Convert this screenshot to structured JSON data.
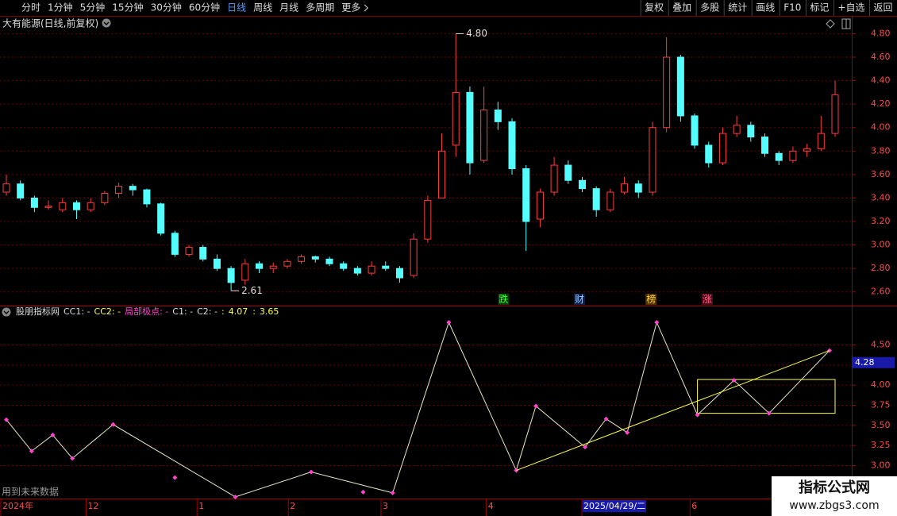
{
  "toolbar": {
    "periods": [
      "分时",
      "1分钟",
      "5分钟",
      "15分钟",
      "30分钟",
      "60分钟",
      "日线",
      "周线",
      "月线",
      "多周期",
      "更多"
    ],
    "active": 6,
    "tools": [
      "复权",
      "叠加",
      "多股",
      "统计",
      "画线",
      "F10",
      "标记",
      "+自选",
      "返回"
    ]
  },
  "chart_data": [
    {
      "type": "candlestick",
      "title": "大有能源(日线,前复权)",
      "up_color": "#ff3c3c",
      "down_color": "#54ffff",
      "ylim": [
        2.49,
        4.83
      ],
      "yticks": [
        {
          "value": 2.6,
          "label": "2.60"
        },
        {
          "value": 2.8,
          "label": "2.80"
        },
        {
          "value": 3,
          "label": "3.00"
        },
        {
          "value": 3.2,
          "label": "3.20"
        },
        {
          "value": 3.4,
          "label": "3.40"
        },
        {
          "value": 3.6,
          "label": "3.60"
        },
        {
          "value": 3.8,
          "label": "3.80"
        },
        {
          "value": 4,
          "label": "4.00"
        },
        {
          "value": 4.2,
          "label": "4.20"
        },
        {
          "value": 4.4,
          "label": "4.40"
        },
        {
          "value": 4.6,
          "label": "4.60"
        },
        {
          "value": 4.8,
          "label": "4.80"
        }
      ],
      "grid": true,
      "open": [
        3.45,
        3.52,
        3.4,
        3.32,
        3.3,
        3.36,
        3.3,
        3.36,
        3.44,
        3.5,
        3.47,
        3.35,
        3.1,
        2.92,
        2.98,
        2.88,
        2.8,
        2.7,
        2.84,
        2.8,
        2.82,
        2.86,
        2.9,
        2.88,
        2.84,
        2.8,
        2.76,
        2.82,
        2.8,
        2.74,
        3.05,
        3.4,
        3.85,
        4.3,
        3.72,
        4.15,
        4.05,
        3.65,
        3.22,
        3.45,
        3.68,
        3.55,
        3.48,
        3.3,
        3.45,
        3.52,
        3.45,
        4.0,
        4.6,
        4.1,
        3.85,
        3.7,
        3.95,
        4.02,
        3.92,
        3.78,
        3.72,
        3.8,
        3.82,
        3.95
      ],
      "high": [
        3.6,
        3.55,
        3.42,
        3.38,
        3.4,
        3.38,
        3.4,
        3.46,
        3.53,
        3.52,
        3.48,
        3.36,
        3.12,
        3.0,
        3.0,
        2.92,
        2.82,
        2.88,
        2.86,
        2.85,
        2.88,
        2.92,
        2.91,
        2.9,
        2.86,
        2.82,
        2.86,
        2.86,
        2.82,
        3.1,
        3.42,
        3.95,
        4.8,
        4.35,
        4.35,
        4.22,
        4.08,
        3.68,
        3.48,
        3.75,
        3.72,
        3.58,
        3.5,
        3.48,
        3.58,
        3.55,
        4.05,
        4.77,
        4.62,
        4.12,
        3.88,
        4.0,
        4.1,
        4.05,
        3.95,
        3.8,
        3.84,
        3.86,
        4.1,
        4.4
      ],
      "low": [
        3.42,
        3.38,
        3.28,
        3.3,
        3.28,
        3.22,
        3.28,
        3.34,
        3.4,
        3.42,
        3.32,
        3.08,
        2.9,
        2.9,
        2.86,
        2.78,
        2.61,
        2.66,
        2.76,
        2.76,
        2.8,
        2.84,
        2.85,
        2.82,
        2.78,
        2.74,
        2.74,
        2.78,
        2.68,
        2.72,
        3.02,
        3.4,
        3.75,
        3.6,
        3.7,
        3.98,
        3.6,
        2.95,
        3.15,
        3.42,
        3.52,
        3.45,
        3.24,
        3.28,
        3.43,
        3.4,
        3.42,
        3.96,
        4.05,
        3.82,
        3.66,
        3.68,
        3.92,
        3.88,
        3.75,
        3.68,
        3.7,
        3.75,
        3.8,
        3.92
      ],
      "close": [
        3.52,
        3.4,
        3.32,
        3.33,
        3.36,
        3.3,
        3.36,
        3.44,
        3.5,
        3.47,
        3.35,
        3.1,
        2.92,
        2.98,
        2.88,
        2.8,
        2.68,
        2.84,
        2.8,
        2.82,
        2.86,
        2.9,
        2.88,
        2.84,
        2.8,
        2.76,
        2.82,
        2.8,
        2.72,
        3.05,
        3.38,
        3.8,
        4.3,
        3.7,
        4.15,
        4.05,
        3.65,
        3.2,
        3.45,
        3.68,
        3.55,
        3.48,
        3.3,
        3.45,
        3.52,
        3.45,
        4.0,
        4.6,
        4.1,
        3.85,
        3.7,
        3.95,
        4.02,
        3.92,
        3.78,
        3.72,
        3.8,
        3.82,
        3.95,
        4.28
      ],
      "annotations": [
        {
          "x": 32,
          "value": 4.8,
          "label": "4.80"
        },
        {
          "x": 16,
          "value": 2.61
        }
      ],
      "markers": [
        {
          "x": 35.4,
          "label": "跌",
          "color": "#33ff33",
          "bg": "#0b3d0b"
        },
        {
          "x": 40.8,
          "label": "财",
          "color": "#99ccff",
          "bg": "#0b1f4d"
        },
        {
          "x": 45.9,
          "label": "榜",
          "color": "#ffcc44",
          "bg": "#4d3300"
        },
        {
          "x": 49.9,
          "label": "涨",
          "color": "#ff6688",
          "bg": "#4d0b1a"
        }
      ]
    },
    {
      "type": "line",
      "legend": [
        "股朋指标网",
        "CC1: -",
        "CC2: -",
        "局部极点: -",
        "C1: -",
        "C2: -",
        ":",
        ":"
      ],
      "legend_colors": [
        "#dddddd",
        "#dddddd",
        "#ffff55",
        "#ff44cc",
        "#dddddd",
        "#dddddd",
        "#ffff55",
        "#ffff55"
      ],
      "ylim": [
        2.6,
        4.86
      ],
      "yticks": [
        {
          "value": 3,
          "label": "3.00"
        },
        3.25,
        {
          "value": 3.5,
          "label": "3.50"
        },
        3.75,
        {
          "value": 4,
          "label": "4.00"
        },
        4.25,
        {
          "value": 4.5,
          "label": "4.50"
        }
      ],
      "grid": true,
      "last_value": 4.28,
      "series": [
        {
          "color": "#e8e8c8",
          "markers": true,
          "x": [
            0,
            1.8,
            3.3,
            4.7,
            7.6,
            16.3,
            21.7,
            27.5,
            31.5,
            36.3,
            37.7,
            41.2,
            42.7,
            44.2,
            46.3,
            49.2,
            51.8,
            54.3,
            58.6
          ],
          "values": [
            3.57,
            3.18,
            3.38,
            3.09,
            3.51,
            2.61,
            2.92,
            2.66,
            4.78,
            2.94,
            3.74,
            3.23,
            3.58,
            3.41,
            4.78,
            3.63,
            4.06,
            3.65,
            4.43
          ]
        },
        {
          "color": "#ff44cc",
          "markers": true,
          "line": false,
          "x": [
            12,
            25.4
          ],
          "values": [
            2.85,
            2.67
          ]
        },
        {
          "color": "#ffff44",
          "markers": false,
          "x": [
            36.3,
            58.6
          ],
          "values": [
            2.94,
            4.43
          ]
        }
      ],
      "box": {
        "x": [
          49.2,
          59
        ],
        "values": [
          3.65,
          4.07
        ],
        "color": "#ffff44"
      }
    }
  ],
  "x_axis": {
    "labels": [
      {
        "label": "2024年",
        "x": 0
      },
      {
        "label": "12",
        "x": 5.9
      },
      {
        "label": "1",
        "x": 13.8
      },
      {
        "label": "2",
        "x": 20.3
      },
      {
        "label": "3",
        "x": 26.9
      },
      {
        "label": "4",
        "x": 34.4
      },
      {
        "label": "2025/04/29/二",
        "x": 41.2,
        "highlight": true
      },
      {
        "label": "6",
        "x": 48.9
      }
    ]
  },
  "footnote": "用到未来数据",
  "watermark": {
    "title": "指标公式网",
    "url": "www.zbgs3.com"
  }
}
